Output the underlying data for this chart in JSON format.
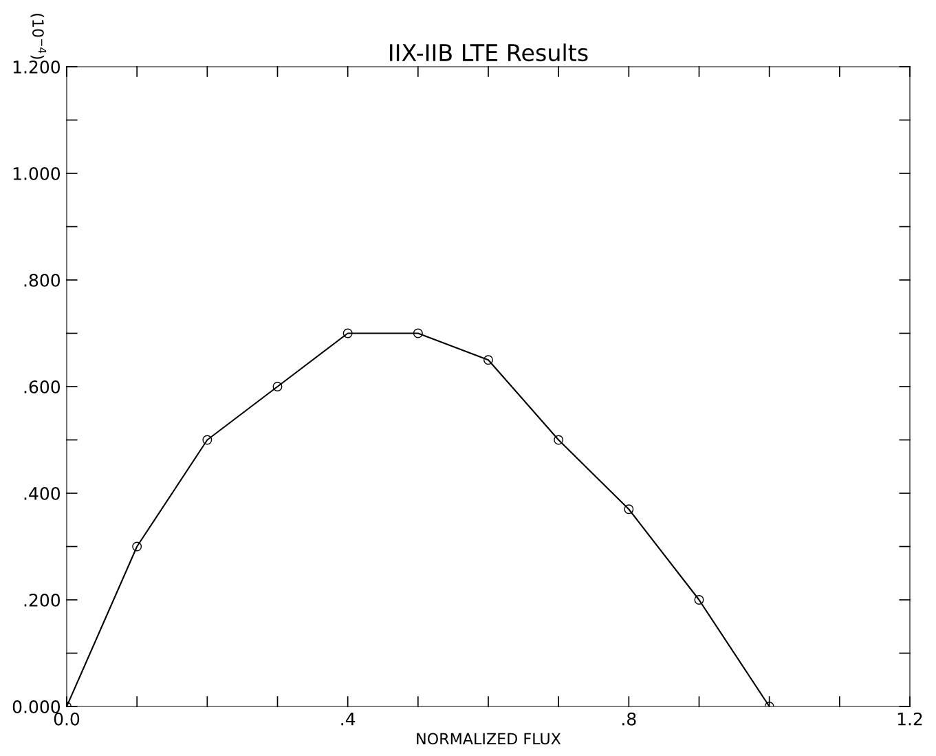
{
  "chart_data": {
    "type": "line",
    "title": "IIX-IIB LTE Results",
    "xlabel": "NORMALIZED FLUX",
    "ylabel": "(10$^{−4}$)",
    "x": [
      0.0,
      0.1,
      0.2,
      0.3,
      0.4,
      0.5,
      0.6,
      0.7,
      0.8,
      0.9,
      1.0
    ],
    "series": [
      {
        "color": "#000000",
        "values": [
          0.0,
          0.3,
          0.5,
          0.6,
          0.7,
          0.7,
          0.65,
          0.5,
          0.37,
          0.2,
          0.0
        ]
      }
    ],
    "xlim": [
      0.0,
      1.2
    ],
    "ylim": [
      0.0,
      1.2
    ],
    "xticks": [
      {
        "value": 0.0,
        "label": "0.0"
      },
      {
        "value": 0.1,
        "label": null
      },
      {
        "value": 0.2,
        "label": null
      },
      {
        "value": 0.3,
        "label": null
      },
      {
        "value": 0.4,
        "label": ".4"
      },
      {
        "value": 0.5,
        "label": null
      },
      {
        "value": 0.6,
        "label": null
      },
      {
        "value": 0.7,
        "label": null
      },
      {
        "value": 0.8,
        "label": ".8"
      },
      {
        "value": 0.9,
        "label": null
      },
      {
        "value": 1.0,
        "label": null
      },
      {
        "value": 1.1,
        "label": null
      },
      {
        "value": 1.2,
        "label": "1.2"
      }
    ],
    "yticks": [
      {
        "value": 0.0,
        "label": "0.000"
      },
      {
        "value": 0.1,
        "label": null
      },
      {
        "value": 0.2,
        "label": ".200"
      },
      {
        "value": 0.3,
        "label": null
      },
      {
        "value": 0.4,
        "label": ".400"
      },
      {
        "value": 0.5,
        "label": null
      },
      {
        "value": 0.6,
        "label": ".600"
      },
      {
        "value": 0.7,
        "label": null
      },
      {
        "value": 0.8,
        "label": ".800"
      },
      {
        "value": 0.9,
        "label": null
      },
      {
        "value": 1.0,
        "label": "1.000"
      },
      {
        "value": 1.1,
        "label": null
      },
      {
        "value": 1.2,
        "label": "1.200"
      }
    ],
    "marker": "circle",
    "line_style": "solid",
    "grid": false,
    "legend": false
  }
}
